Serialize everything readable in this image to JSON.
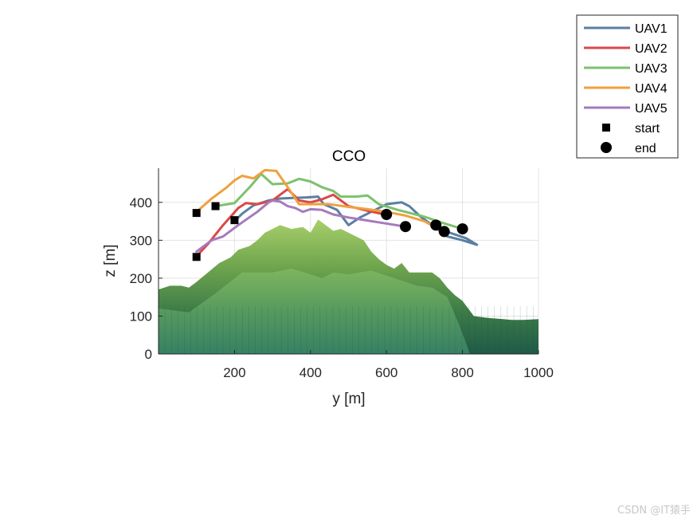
{
  "chart_data": {
    "type": "line",
    "title": "CCO",
    "xlabel": "y [m]",
    "ylabel": "z [m]",
    "xlim": [
      0,
      1000
    ],
    "ylim": [
      0,
      490
    ],
    "xticks": [
      200,
      400,
      600,
      800,
      1000
    ],
    "yticks": [
      0,
      100,
      200,
      300,
      400
    ],
    "grid": true,
    "legend_position": "outside top-right",
    "series": [
      {
        "name": "UAV1",
        "color": "#5b7fa2",
        "points": [
          [
            200,
            350
          ],
          [
            220,
            370
          ],
          [
            250,
            392
          ],
          [
            290,
            405
          ],
          [
            320,
            410
          ],
          [
            360,
            412
          ],
          [
            390,
            413
          ],
          [
            420,
            415
          ],
          [
            435,
            395
          ],
          [
            470,
            380
          ],
          [
            500,
            340
          ],
          [
            530,
            360
          ],
          [
            570,
            380
          ],
          [
            600,
            395
          ],
          [
            640,
            400
          ],
          [
            660,
            390
          ],
          [
            690,
            362
          ],
          [
            720,
            340
          ],
          [
            760,
            310
          ],
          [
            800,
            300
          ],
          [
            838,
            288
          ],
          [
            810,
            305
          ],
          [
            760,
            322
          ],
          [
            730,
            335
          ]
        ]
      },
      {
        "name": "UAV2",
        "color": "#d94848",
        "points": [
          [
            100,
            258
          ],
          [
            130,
            290
          ],
          [
            170,
            340
          ],
          [
            210,
            385
          ],
          [
            230,
            398
          ],
          [
            260,
            395
          ],
          [
            300,
            405
          ],
          [
            340,
            435
          ],
          [
            370,
            405
          ],
          [
            400,
            400
          ],
          [
            430,
            408
          ],
          [
            460,
            420
          ],
          [
            480,
            405
          ],
          [
            500,
            390
          ],
          [
            550,
            378
          ],
          [
            600,
            367
          ]
        ]
      },
      {
        "name": "UAV3",
        "color": "#7cc26d",
        "points": [
          [
            150,
            390
          ],
          [
            200,
            398
          ],
          [
            240,
            440
          ],
          [
            270,
            475
          ],
          [
            300,
            448
          ],
          [
            340,
            450
          ],
          [
            370,
            462
          ],
          [
            400,
            455
          ],
          [
            430,
            440
          ],
          [
            460,
            430
          ],
          [
            480,
            415
          ],
          [
            520,
            415
          ],
          [
            550,
            418
          ],
          [
            580,
            395
          ],
          [
            630,
            380
          ],
          [
            700,
            362
          ],
          [
            750,
            345
          ],
          [
            800,
            330
          ]
        ]
      },
      {
        "name": "UAV4",
        "color": "#f0a040",
        "points": [
          [
            100,
            375
          ],
          [
            140,
            410
          ],
          [
            180,
            440
          ],
          [
            200,
            458
          ],
          [
            220,
            470
          ],
          [
            250,
            463
          ],
          [
            280,
            485
          ],
          [
            310,
            483
          ],
          [
            340,
            440
          ],
          [
            370,
            395
          ],
          [
            400,
            395
          ],
          [
            450,
            395
          ],
          [
            500,
            388
          ],
          [
            550,
            382
          ],
          [
            600,
            375
          ],
          [
            650,
            365
          ],
          [
            700,
            350
          ],
          [
            750,
            322
          ]
        ]
      },
      {
        "name": "UAV5",
        "color": "#a57bbd",
        "points": [
          [
            100,
            270
          ],
          [
            120,
            285
          ],
          [
            140,
            300
          ],
          [
            170,
            310
          ],
          [
            210,
            340
          ],
          [
            260,
            375
          ],
          [
            290,
            400
          ],
          [
            300,
            405
          ],
          [
            320,
            402
          ],
          [
            340,
            390
          ],
          [
            360,
            385
          ],
          [
            380,
            375
          ],
          [
            400,
            382
          ],
          [
            430,
            380
          ],
          [
            460,
            368
          ],
          [
            500,
            360
          ],
          [
            550,
            352
          ],
          [
            600,
            344
          ],
          [
            650,
            336
          ]
        ]
      }
    ],
    "markers": {
      "start": {
        "label": "start",
        "points": [
          [
            100,
            372
          ],
          [
            150,
            390
          ],
          [
            200,
            353
          ],
          [
            100,
            256
          ]
        ]
      },
      "end": {
        "label": "end",
        "points": [
          [
            600,
            368
          ],
          [
            650,
            336
          ],
          [
            730,
            340
          ],
          [
            752,
            323
          ],
          [
            800,
            330
          ]
        ]
      }
    },
    "terrain": {
      "ridge_profile": [
        [
          0,
          170
        ],
        [
          30,
          180
        ],
        [
          60,
          180
        ],
        [
          80,
          175
        ],
        [
          100,
          190
        ],
        [
          130,
          215
        ],
        [
          160,
          240
        ],
        [
          190,
          255
        ],
        [
          210,
          275
        ],
        [
          240,
          285
        ],
        [
          260,
          300
        ],
        [
          280,
          320
        ],
        [
          300,
          330
        ],
        [
          320,
          340
        ],
        [
          350,
          330
        ],
        [
          380,
          335
        ],
        [
          400,
          320
        ],
        [
          420,
          355
        ],
        [
          440,
          340
        ],
        [
          460,
          325
        ],
        [
          480,
          330
        ],
        [
          500,
          320
        ],
        [
          520,
          310
        ],
        [
          540,
          300
        ],
        [
          560,
          270
        ],
        [
          580,
          250
        ],
        [
          600,
          235
        ],
        [
          620,
          225
        ],
        [
          640,
          240
        ],
        [
          660,
          215
        ],
        [
          690,
          215
        ],
        [
          720,
          215
        ],
        [
          740,
          200
        ],
        [
          760,
          175
        ],
        [
          780,
          155
        ],
        [
          800,
          140
        ],
        [
          830,
          100
        ],
        [
          870,
          95
        ],
        [
          930,
          90
        ],
        [
          960,
          90
        ],
        [
          1000,
          92
        ]
      ],
      "lower_profile": [
        [
          0,
          120
        ],
        [
          80,
          110
        ],
        [
          150,
          160
        ],
        [
          220,
          215
        ],
        [
          300,
          215
        ],
        [
          350,
          225
        ],
        [
          400,
          210
        ],
        [
          430,
          200
        ],
        [
          460,
          215
        ],
        [
          500,
          210
        ],
        [
          560,
          220
        ],
        [
          620,
          200
        ],
        [
          680,
          180
        ],
        [
          720,
          175
        ],
        [
          760,
          150
        ],
        [
          790,
          80
        ],
        [
          820,
          0
        ]
      ]
    }
  },
  "watermark": "CSDN @IT猿手"
}
